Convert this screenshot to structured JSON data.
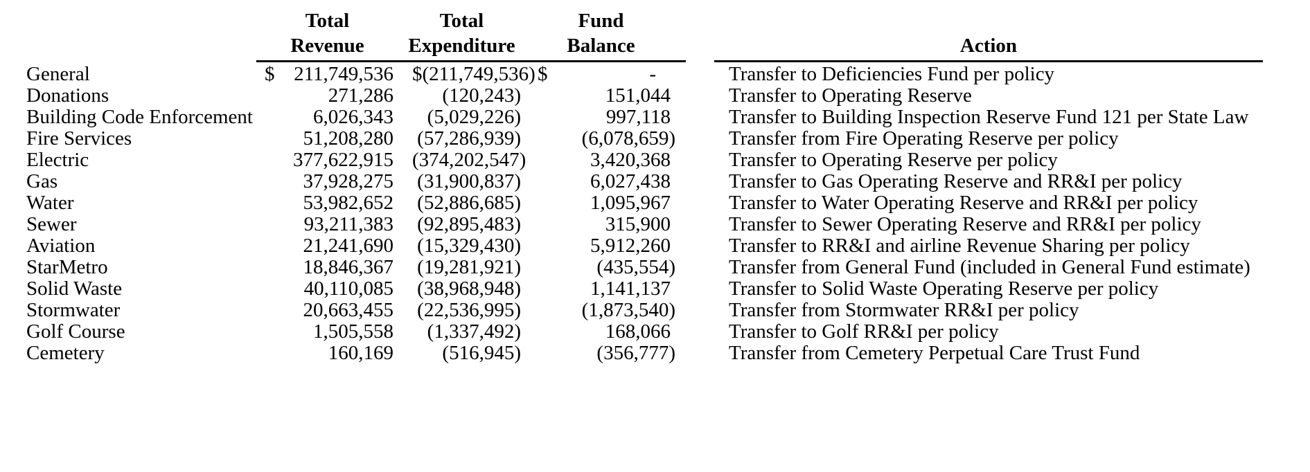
{
  "table": {
    "header": {
      "revenue_line1": "Total",
      "revenue_line2": "Revenue",
      "expenditure_line1": "Total",
      "expenditure_line2": "Expenditure",
      "balance_line1": "Fund",
      "balance_line2": "Balance",
      "action": "Action"
    },
    "rows": [
      {
        "fund": "General",
        "revenue_currency": "$",
        "revenue": "211,749,536",
        "expenditure_currency": "$",
        "expenditure": "(211,749,536)",
        "balance_currency": "$",
        "balance": "-",
        "action": "Transfer to Deficiencies Fund per policy"
      },
      {
        "fund": "Donations",
        "revenue": "271,286",
        "expenditure": "(120,243)",
        "balance": "151,044",
        "action": "Transfer to Operating Reserve"
      },
      {
        "fund": "Building Code Enforcement",
        "revenue": "6,026,343",
        "expenditure": "(5,029,226)",
        "balance": "997,118",
        "action": "Transfer to Building Inspection Reserve Fund 121 per State Law"
      },
      {
        "fund": "Fire Services",
        "revenue": "51,208,280",
        "expenditure": "(57,286,939)",
        "balance": "(6,078,659)",
        "action": "Transfer from Fire Operating Reserve per policy"
      },
      {
        "fund": "Electric",
        "revenue": "377,622,915",
        "expenditure": "(374,202,547)",
        "balance": "3,420,368",
        "action": "Transfer to Operating Reserve per policy"
      },
      {
        "fund": "Gas",
        "revenue": "37,928,275",
        "expenditure": "(31,900,837)",
        "balance": "6,027,438",
        "action": "Transfer to Gas Operating Reserve and RR&I per policy"
      },
      {
        "fund": "Water",
        "revenue": "53,982,652",
        "expenditure": "(52,886,685)",
        "balance": "1,095,967",
        "action": "Transfer to Water Operating Reserve and RR&I per policy"
      },
      {
        "fund": "Sewer",
        "revenue": "93,211,383",
        "expenditure": "(92,895,483)",
        "balance": "315,900",
        "action": "Transfer to Sewer Operating Reserve and RR&I per policy"
      },
      {
        "fund": "Aviation",
        "revenue": "21,241,690",
        "expenditure": "(15,329,430)",
        "balance": "5,912,260",
        "action": "Transfer to RR&I and airline Revenue Sharing per policy"
      },
      {
        "fund": "StarMetro",
        "revenue": "18,846,367",
        "expenditure": "(19,281,921)",
        "balance": "(435,554)",
        "action": "Transfer from General Fund (included in General Fund estimate)"
      },
      {
        "fund": "Solid Waste",
        "revenue": "40,110,085",
        "expenditure": "(38,968,948)",
        "balance": "1,141,137",
        "action": "Transfer to Solid Waste Operating Reserve per policy"
      },
      {
        "fund": "Stormwater",
        "revenue": "20,663,455",
        "expenditure": "(22,536,995)",
        "balance": "(1,873,540)",
        "action": "Transfer from Stormwater RR&I per policy"
      },
      {
        "fund": "Golf Course",
        "revenue": "1,505,558",
        "expenditure": "(1,337,492)",
        "balance": "168,066",
        "action": "Transfer to Golf RR&I per policy"
      },
      {
        "fund": "Cemetery",
        "revenue": "160,169",
        "expenditure": "(516,945)",
        "balance": "(356,777)",
        "action": "Transfer from Cemetery Perpetual Care Trust Fund"
      }
    ]
  }
}
